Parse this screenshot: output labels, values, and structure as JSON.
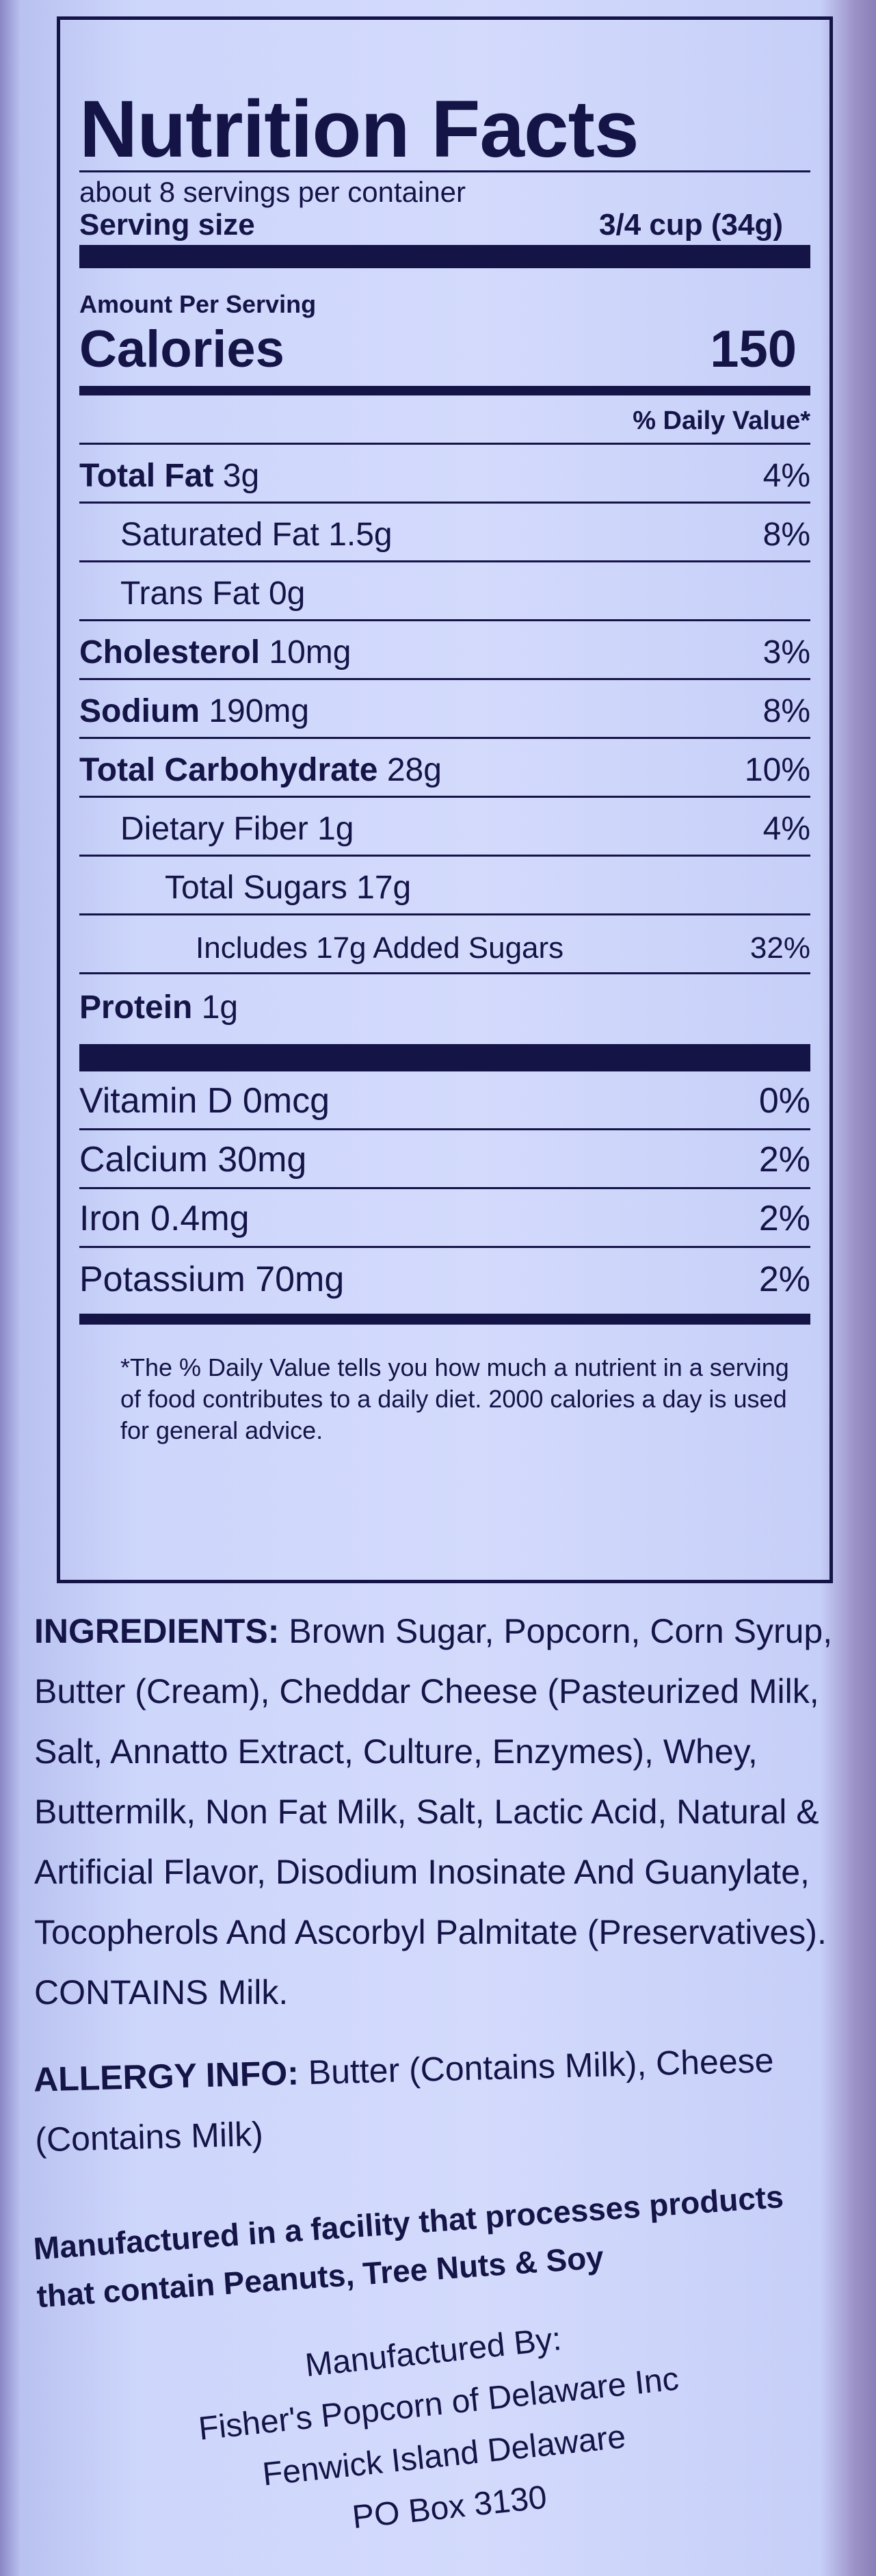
{
  "nutrition_facts": {
    "title": "Nutrition Facts",
    "servings": "about 8 servings per container",
    "serving_size_label": "Serving size",
    "serving_size_value": "3/4 cup (34g)",
    "amount_per_serving": "Amount Per Serving",
    "calories_label": "Calories",
    "calories_value": "150",
    "daily_value_header": "% Daily Value*",
    "nutrients": [
      {
        "name": "Total Fat",
        "amount": "3g",
        "dv": "4%"
      },
      {
        "name": "Saturated Fat",
        "amount": "1.5g",
        "dv": "8%"
      },
      {
        "name": "Trans Fat",
        "amount": "0g",
        "dv": ""
      },
      {
        "name": "Cholesterol",
        "amount": "10mg",
        "dv": "3%"
      },
      {
        "name": "Sodium",
        "amount": "190mg",
        "dv": "8%"
      },
      {
        "name": "Total Carbohydrate",
        "amount": "28g",
        "dv": "10%"
      },
      {
        "name": "Dietary Fiber",
        "amount": "1g",
        "dv": "4%"
      },
      {
        "name": "Total Sugars",
        "amount": "17g",
        "dv": ""
      },
      {
        "name": "Includes 17g Added Sugars",
        "amount": "",
        "dv": "32%"
      },
      {
        "name": "Protein",
        "amount": "1g",
        "dv": ""
      }
    ],
    "vitamins": [
      {
        "name": "Vitamin D 0mcg",
        "dv": "0%"
      },
      {
        "name": "Calcium 30mg",
        "dv": "2%"
      },
      {
        "name": "Iron 0.4mg",
        "dv": "2%"
      },
      {
        "name": "Potassium 70mg",
        "dv": "2%"
      }
    ],
    "footnote": "*The % Daily Value tells you how much a nutrient in a serving of food contributes to a daily diet. 2000 calories a day is used for general advice."
  },
  "ingredients": {
    "label": "INGREDIENTS:",
    "text": "Brown Sugar, Popcorn, Corn Syrup, Butter (Cream), Cheddar Cheese (Pasteurized Milk, Salt, Annatto Extract, Culture, Enzymes), Whey, Buttermilk, Non Fat Milk, Salt, Lactic Acid, Natural & Artificial Flavor, Disodium Inosinate And Guanylate, Tocopherols And Ascorbyl Palmitate (Preservatives).",
    "contains": "CONTAINS Milk."
  },
  "allergy": {
    "label": "ALLERGY INFO:",
    "text": "Butter (Contains Milk), Cheese (Contains Milk)",
    "facility": "Manufactured in a facility that processes products that contain Peanuts, Tree Nuts & Soy"
  },
  "manufacturer": {
    "heading": "Manufactured By:",
    "name": "Fisher's Popcorn of Delaware Inc",
    "location": "Fenwick Island Delaware",
    "box": "PO Box 3130"
  }
}
